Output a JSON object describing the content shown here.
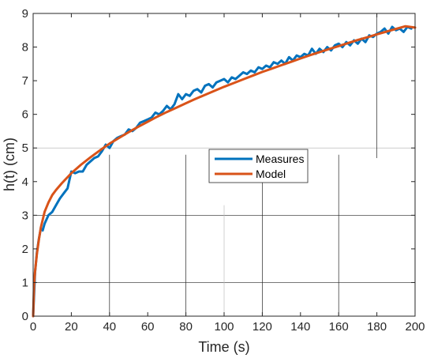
{
  "chart_data": {
    "type": "line",
    "xlabel": "Time (s)",
    "ylabel": "h(t) (cm)",
    "xlim": [
      0,
      200
    ],
    "ylim": [
      0,
      9
    ],
    "xticks": [
      0,
      20,
      40,
      60,
      80,
      100,
      120,
      140,
      160,
      180,
      200
    ],
    "yticks": [
      0,
      1,
      2,
      3,
      4,
      5,
      6,
      7,
      8,
      9
    ],
    "grid": "partial",
    "legend_position": "center",
    "colors": {
      "Measures": "#0072BD",
      "Model": "#D95319"
    },
    "series": [
      {
        "name": "Measures",
        "x": [
          0,
          1,
          2,
          3,
          4,
          5,
          6,
          8,
          10,
          12,
          14,
          16,
          18,
          20,
          22,
          24,
          26,
          28,
          30,
          32,
          34,
          36,
          38,
          40,
          42,
          44,
          46,
          48,
          50,
          52,
          54,
          56,
          58,
          60,
          62,
          64,
          66,
          68,
          70,
          72,
          74,
          76,
          78,
          80,
          82,
          84,
          86,
          88,
          90,
          92,
          94,
          96,
          98,
          100,
          102,
          104,
          106,
          108,
          110,
          112,
          114,
          116,
          118,
          120,
          122,
          124,
          126,
          128,
          130,
          132,
          134,
          136,
          138,
          140,
          142,
          144,
          146,
          148,
          150,
          152,
          154,
          156,
          158,
          160,
          162,
          164,
          166,
          168,
          170,
          172,
          174,
          176,
          178,
          180,
          182,
          184,
          186,
          188,
          190,
          192,
          194,
          196,
          198
        ],
        "values": [
          0,
          1.3,
          1.9,
          2.3,
          2.6,
          2.55,
          2.75,
          3.0,
          3.1,
          3.3,
          3.5,
          3.65,
          3.8,
          4.3,
          4.25,
          4.3,
          4.3,
          4.5,
          4.6,
          4.7,
          4.75,
          4.9,
          5.1,
          5.0,
          5.2,
          5.3,
          5.35,
          5.4,
          5.55,
          5.5,
          5.6,
          5.75,
          5.8,
          5.85,
          5.9,
          6.05,
          6.0,
          6.1,
          6.25,
          6.15,
          6.3,
          6.6,
          6.45,
          6.6,
          6.55,
          6.7,
          6.75,
          6.65,
          6.85,
          6.9,
          6.8,
          6.95,
          7.0,
          7.05,
          6.95,
          7.1,
          7.05,
          7.15,
          7.25,
          7.2,
          7.3,
          7.25,
          7.4,
          7.35,
          7.45,
          7.4,
          7.55,
          7.5,
          7.6,
          7.5,
          7.7,
          7.6,
          7.75,
          7.7,
          7.8,
          7.75,
          7.95,
          7.8,
          7.95,
          7.85,
          8.0,
          7.9,
          8.05,
          8.1,
          8.0,
          8.15,
          8.05,
          8.2,
          8.1,
          8.25,
          8.15,
          8.35,
          8.3,
          8.4,
          8.45,
          8.55,
          8.4,
          8.6,
          8.5,
          8.55,
          8.45,
          8.6,
          8.55
        ]
      },
      {
        "name": "Model",
        "x": [
          0,
          0.5,
          1,
          2,
          3,
          4,
          6,
          8,
          10,
          12,
          15,
          20,
          25,
          30,
          35,
          40,
          45,
          50,
          55,
          60,
          65,
          70,
          75,
          80,
          85,
          90,
          95,
          100,
          105,
          110,
          115,
          120,
          125,
          130,
          135,
          140,
          145,
          150,
          155,
          160,
          165,
          170,
          175,
          180,
          185,
          190,
          195,
          200
        ],
        "values": [
          0,
          0.93,
          1.32,
          1.86,
          2.28,
          2.63,
          3.1,
          3.38,
          3.6,
          3.75,
          3.95,
          4.25,
          4.5,
          4.72,
          4.93,
          5.13,
          5.3,
          5.47,
          5.63,
          5.78,
          5.93,
          6.07,
          6.2,
          6.33,
          6.46,
          6.58,
          6.7,
          6.82,
          6.93,
          7.04,
          7.15,
          7.26,
          7.36,
          7.46,
          7.56,
          7.66,
          7.76,
          7.85,
          7.94,
          8.03,
          8.12,
          8.21,
          8.29,
          8.38,
          8.46,
          8.54,
          8.62,
          8.58
        ]
      }
    ]
  }
}
